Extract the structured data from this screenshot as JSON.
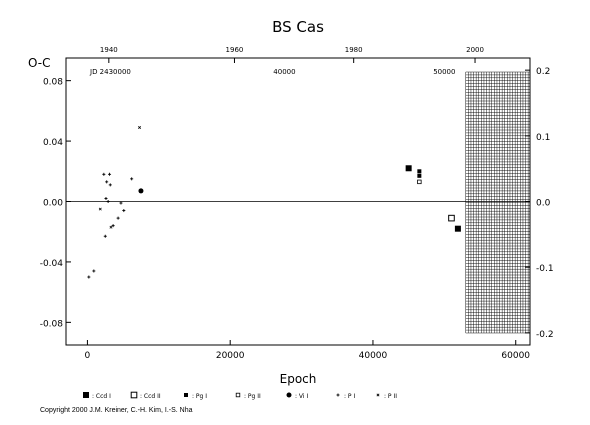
{
  "chart_data": {
    "type": "scatter",
    "title": "BS Cas",
    "ylabel": "O-C",
    "xlabel": "Epoch",
    "xlim": [
      -3000,
      62000
    ],
    "ylim": [
      -0.095,
      0.095
    ],
    "right_ylim": [
      -0.2185,
      0.2185
    ],
    "jd_label": "JD 2430000",
    "grid": false,
    "zero_line": true,
    "x_ticks": [
      0,
      20000,
      40000,
      60000
    ],
    "x_tick_labels": [
      "0",
      "20000",
      "40000",
      "60000"
    ],
    "y_ticks": [
      -0.08,
      -0.04,
      0.0,
      0.04,
      0.08
    ],
    "y_tick_labels": [
      "-0.08",
      "-0.04",
      "0.00",
      "0.04",
      "0.08"
    ],
    "right_ticks": [
      -0.2,
      -0.1,
      0.0,
      0.1,
      0.2
    ],
    "right_tick_labels": [
      "-0.2",
      "-0.1",
      "0.0",
      "0.1",
      "0.2"
    ],
    "top_year_ticks": [
      {
        "label": "1940",
        "epoch": 3000
      },
      {
        "label": "1960",
        "epoch": 20600
      },
      {
        "label": "1980",
        "epoch": 37300
      },
      {
        "label": "2000",
        "epoch": 54300
      }
    ],
    "top_jd_ticks": [
      {
        "label": "40000",
        "epoch": 27600
      },
      {
        "label": "50000",
        "epoch": 50000
      }
    ],
    "hatched_region": {
      "from": 53000,
      "to": 62000
    },
    "legend": [
      {
        "label": ": Ccd I",
        "marker": "filled-square"
      },
      {
        "label": ": Ccd II",
        "marker": "open-square"
      },
      {
        "label": ": Pg I",
        "marker": "filled-small-square"
      },
      {
        "label": ": Pg II",
        "marker": "open-small-square"
      },
      {
        "label": ": Vi I",
        "marker": "filled-circle"
      },
      {
        "label": ": P I",
        "marker": "plus"
      },
      {
        "label": ": P II",
        "marker": "cross"
      }
    ],
    "series": [
      {
        "name": "Ccd I",
        "marker": "filled-square",
        "points": [
          [
            45000,
            0.022
          ],
          [
            51900,
            -0.018
          ]
        ]
      },
      {
        "name": "Ccd II",
        "marker": "open-square",
        "points": [
          [
            51000,
            -0.011
          ]
        ]
      },
      {
        "name": "Pg I",
        "marker": "filled-small-square",
        "points": [
          [
            46500,
            0.02
          ],
          [
            46500,
            0.017
          ]
        ]
      },
      {
        "name": "Pg II",
        "marker": "open-small-square",
        "points": [
          [
            46500,
            0.013
          ]
        ]
      },
      {
        "name": "Vi I",
        "marker": "filled-circle",
        "points": [
          [
            7500,
            0.007
          ]
        ]
      },
      {
        "name": "P I",
        "marker": "plus",
        "points": [
          [
            2300,
            0.018
          ],
          [
            2700,
            0.013
          ],
          [
            2600,
            0.002
          ],
          [
            2500,
            -0.023
          ],
          [
            3200,
            0.011
          ],
          [
            3100,
            0.018
          ],
          [
            3600,
            -0.016
          ],
          [
            4300,
            -0.011
          ],
          [
            5100,
            -0.006
          ],
          [
            6200,
            0.015
          ],
          [
            900,
            -0.046
          ],
          [
            200,
            -0.05
          ],
          [
            4700,
            -0.001
          ],
          [
            2900,
            0.0
          ]
        ]
      },
      {
        "name": "P II",
        "marker": "cross",
        "points": [
          [
            1800,
            -0.005
          ],
          [
            3300,
            -0.017
          ],
          [
            7300,
            0.049
          ]
        ]
      }
    ]
  },
  "copyright": "Copyright 2000 J.M. Kreiner, C.-H. Kim, I.-S. Nha"
}
